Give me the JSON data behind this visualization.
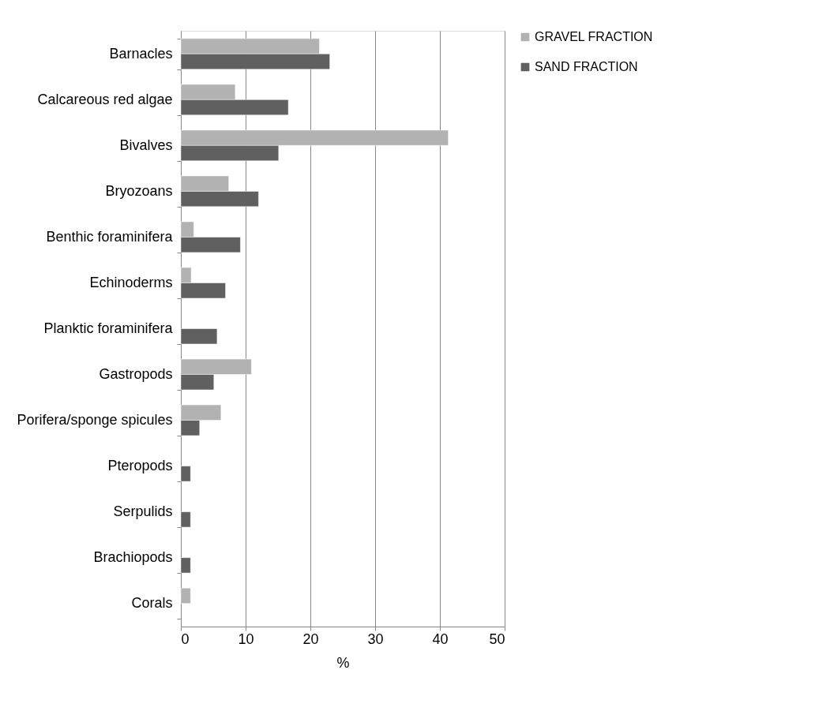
{
  "chart_data": {
    "type": "bar",
    "orientation": "horizontal",
    "xlabel": "%",
    "categories": [
      "Barnacles",
      "Calcareous red algae",
      "Bivalves",
      "Bryozoans",
      "Benthic foraminifera",
      "Echinoderms",
      "Planktic foraminifera",
      "Gastropods",
      "Porifera/sponge spicules",
      "Pteropods",
      "Serpulids",
      "Brachiopods",
      "Corals"
    ],
    "series": [
      {
        "name": "GRAVEL FRACTION",
        "color": "#b2b2b2",
        "values": [
          21.4,
          8.4,
          41.3,
          7.4,
          2.0,
          1.6,
          null,
          10.9,
          6.2,
          null,
          null,
          null,
          1.5
        ]
      },
      {
        "name": "SAND FRACTION",
        "color": "#606060",
        "values": [
          23.0,
          16.6,
          15.1,
          12.0,
          9.2,
          6.9,
          5.6,
          5.1,
          2.9,
          1.5,
          1.5,
          1.5,
          null
        ]
      }
    ],
    "xlim": [
      0,
      50
    ],
    "xticks": [
      0,
      10,
      20,
      30,
      40,
      50
    ],
    "grid": "x",
    "legend": "right"
  }
}
